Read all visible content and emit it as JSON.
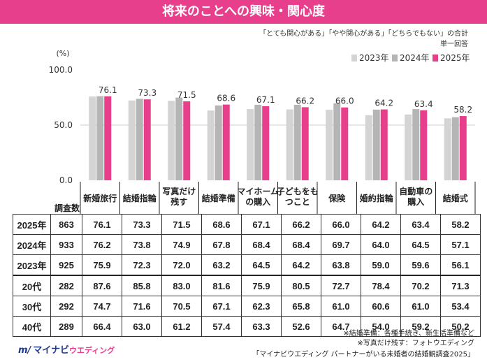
{
  "title": "将来のことへの興味・関心度",
  "note_line1": "「とても関心がある」「やや関心がある」「どちらでもない」の合計",
  "note_line2": "単一回答",
  "unit_label": "(%)",
  "count_header": "調査数",
  "colors": {
    "2023年": "#d4d4d4",
    "2024年": "#b5b5b5",
    "2025年": "#e83f8c",
    "title_bg": "#e83f8c",
    "brand": "#1f3a8a"
  },
  "chart_data": {
    "type": "bar",
    "title": "将来のことへの興味・関心度",
    "categories": [
      "新婚旅行",
      "結婚指輪",
      "写真だけ\n残す",
      "結婚準備",
      "マイホーム\nの購入",
      "子どもをも\nつこと",
      "保険",
      "婚約指輪",
      "自動車の\n購入",
      "結婚式"
    ],
    "series": [
      {
        "name": "2023年",
        "values": [
          75.9,
          72.3,
          72.0,
          63.2,
          64.5,
          64.2,
          63.8,
          59.0,
          59.6,
          56.1
        ]
      },
      {
        "name": "2024年",
        "values": [
          76.2,
          73.8,
          74.9,
          67.8,
          68.4,
          68.4,
          69.7,
          64.0,
          64.5,
          57.1
        ]
      },
      {
        "name": "2025年",
        "values": [
          76.1,
          73.3,
          71.5,
          68.6,
          67.1,
          66.2,
          66.0,
          64.2,
          63.4,
          58.2
        ]
      }
    ],
    "data_labels_series": "2025年",
    "data_labels": [
      "76.1",
      "73.3",
      "71.5",
      "68.6",
      "67.1",
      "66.2",
      "66.0",
      "64.2",
      "63.4",
      "58.2"
    ],
    "yticks": [
      "100.0",
      "50.0",
      "0.0"
    ],
    "ylim": [
      0,
      100
    ],
    "legend": [
      "2023年",
      "2024年",
      "2025年"
    ],
    "legend_position": "top-right"
  },
  "table": {
    "rows": [
      {
        "label": "2025年",
        "count": "863",
        "values": [
          "76.1",
          "73.3",
          "71.5",
          "68.6",
          "67.1",
          "66.2",
          "66.0",
          "64.2",
          "63.4",
          "58.2"
        ]
      },
      {
        "label": "2024年",
        "count": "933",
        "values": [
          "76.2",
          "73.8",
          "74.9",
          "67.8",
          "68.4",
          "68.4",
          "69.7",
          "64.0",
          "64.5",
          "57.1"
        ]
      },
      {
        "label": "2023年",
        "count": "925",
        "values": [
          "75.9",
          "72.3",
          "72.0",
          "63.2",
          "64.5",
          "64.2",
          "63.8",
          "59.0",
          "59.6",
          "56.1"
        ]
      },
      {
        "label": "20代",
        "count": "282",
        "values": [
          "87.6",
          "85.8",
          "83.0",
          "81.6",
          "75.9",
          "80.5",
          "72.7",
          "78.4",
          "70.2",
          "71.3"
        ]
      },
      {
        "label": "30代",
        "count": "292",
        "values": [
          "74.7",
          "71.6",
          "70.5",
          "67.1",
          "62.3",
          "65.8",
          "61.0",
          "60.6",
          "61.0",
          "53.4"
        ]
      },
      {
        "label": "40代",
        "count": "289",
        "values": [
          "66.4",
          "63.0",
          "61.2",
          "57.4",
          "63.3",
          "52.6",
          "64.7",
          "54.0",
          "59.2",
          "50.2"
        ]
      }
    ]
  },
  "footnotes": [
    "※結婚準備：各種手続き、新生活準備など",
    "※写真だけ残す：フォトウエディング",
    "「マイナビウエディング パートナーがいる未婚者の結婚観調査2025」"
  ],
  "logo": {
    "mark": "m/",
    "name": "マイナビ",
    "sub": "ウエディング"
  }
}
